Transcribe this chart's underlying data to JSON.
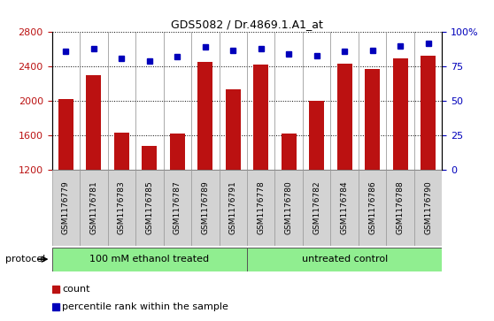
{
  "title": "GDS5082 / Dr.4869.1.A1_at",
  "samples": [
    "GSM1176779",
    "GSM1176781",
    "GSM1176783",
    "GSM1176785",
    "GSM1176787",
    "GSM1176789",
    "GSM1176791",
    "GSM1176778",
    "GSM1176780",
    "GSM1176782",
    "GSM1176784",
    "GSM1176786",
    "GSM1176788",
    "GSM1176790"
  ],
  "counts": [
    2020,
    2305,
    1635,
    1480,
    1625,
    2450,
    2135,
    2420,
    1625,
    2000,
    2430,
    2375,
    2500,
    2530
  ],
  "percentiles": [
    86,
    88,
    81,
    79,
    82,
    89,
    87,
    88,
    84,
    83,
    86,
    87,
    90,
    92
  ],
  "group1_label": "100 mM ethanol treated",
  "group2_label": "untreated control",
  "group1_count": 7,
  "group2_count": 7,
  "ylim_left": [
    1200,
    2800
  ],
  "ylim_right": [
    0,
    100
  ],
  "yticks_left": [
    1200,
    1600,
    2000,
    2400,
    2800
  ],
  "yticks_right": [
    0,
    25,
    50,
    75,
    100
  ],
  "bar_color": "#BB1111",
  "dot_color": "#0000BB",
  "group_bg": "#90EE90",
  "sample_bg": "#D3D3D3",
  "legend_count_label": "count",
  "legend_pct_label": "percentile rank within the sample",
  "protocol_label": "protocol"
}
